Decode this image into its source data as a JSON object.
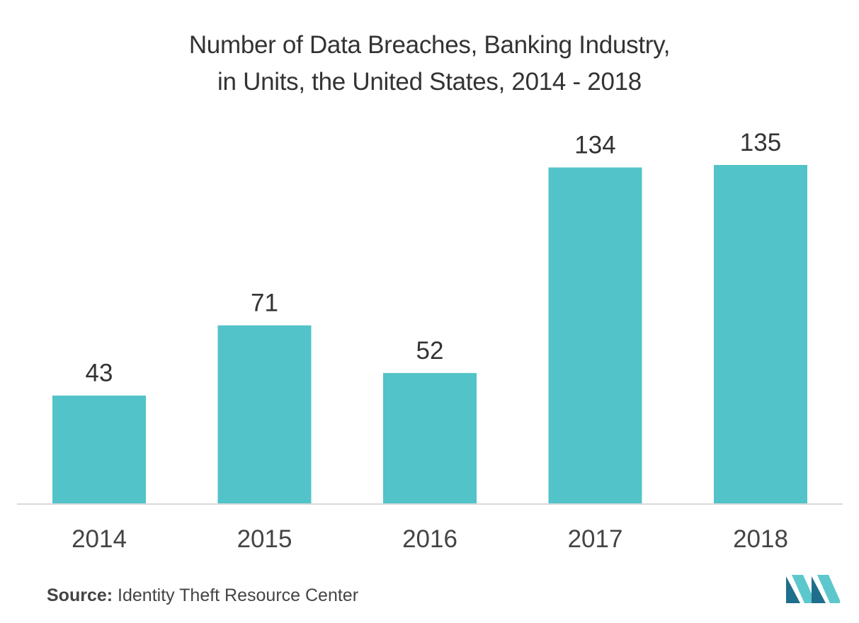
{
  "chart_data": {
    "type": "bar",
    "title_lines": [
      "Number of Data Breaches, Banking Industry,",
      "in Units, the United States, 2014 - 2018"
    ],
    "categories": [
      "2014",
      "2015",
      "2016",
      "2017",
      "2018"
    ],
    "values": [
      43,
      71,
      52,
      134,
      135
    ],
    "data_labels": [
      "43",
      "71",
      "52",
      "134",
      "135"
    ],
    "xlabel": "",
    "ylabel": "",
    "ylim": [
      0,
      135
    ],
    "grid": false,
    "bar_color": "#52c3c9",
    "axis_color": "#d9d9d9"
  },
  "source": {
    "label": "Source:",
    "text": "Identity Theft Resource Center"
  },
  "logo": {
    "icon": "mordor-intelligence-logo",
    "color_dark": "#1f6e8c",
    "color_light": "#5cc7cc"
  }
}
